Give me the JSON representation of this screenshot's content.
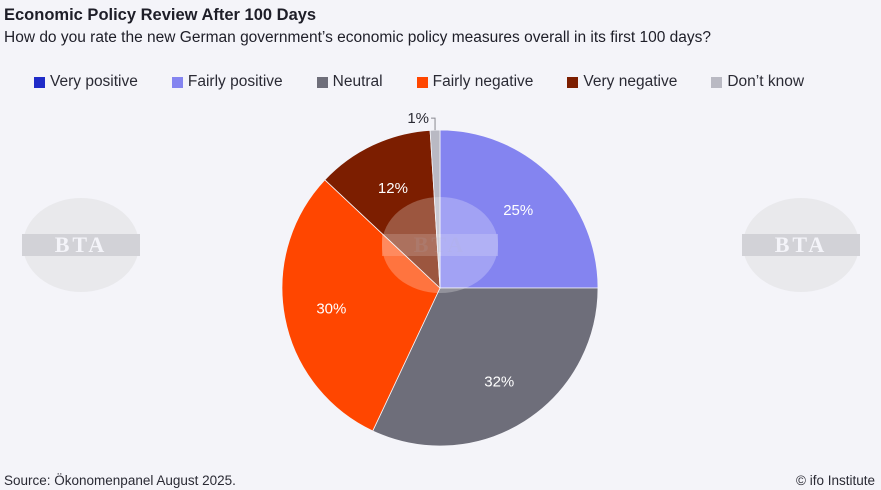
{
  "header": {
    "title": "Economic Policy Review After 100 Days",
    "subtitle": "How do you rate the new German government’s economic policy measures overall in its first 100 days?"
  },
  "footer": {
    "source": "Source: Ökonomenpanel August 2025.",
    "credit": "© ifo Institute"
  },
  "watermark": {
    "text": "BTA",
    "color": "#c8c8cc"
  },
  "chart_data": {
    "type": "pie",
    "title": "Economic Policy Review After 100 Days",
    "legend_position": "top",
    "slices": [
      {
        "label": "Very positive",
        "value": 0,
        "color": "#1f2bc8",
        "data_label": ""
      },
      {
        "label": "Fairly positive",
        "value": 25,
        "color": "#8484f0",
        "data_label": "25%"
      },
      {
        "label": "Neutral",
        "value": 32,
        "color": "#6e6e7a",
        "data_label": "32%"
      },
      {
        "label": "Fairly negative",
        "value": 30,
        "color": "#ff4600",
        "data_label": "30%"
      },
      {
        "label": "Very negative",
        "value": 12,
        "color": "#7c1e00",
        "data_label": "12%"
      },
      {
        "label": "Don’t know",
        "value": 1,
        "color": "#b9b9c3",
        "data_label": "1%"
      }
    ]
  }
}
